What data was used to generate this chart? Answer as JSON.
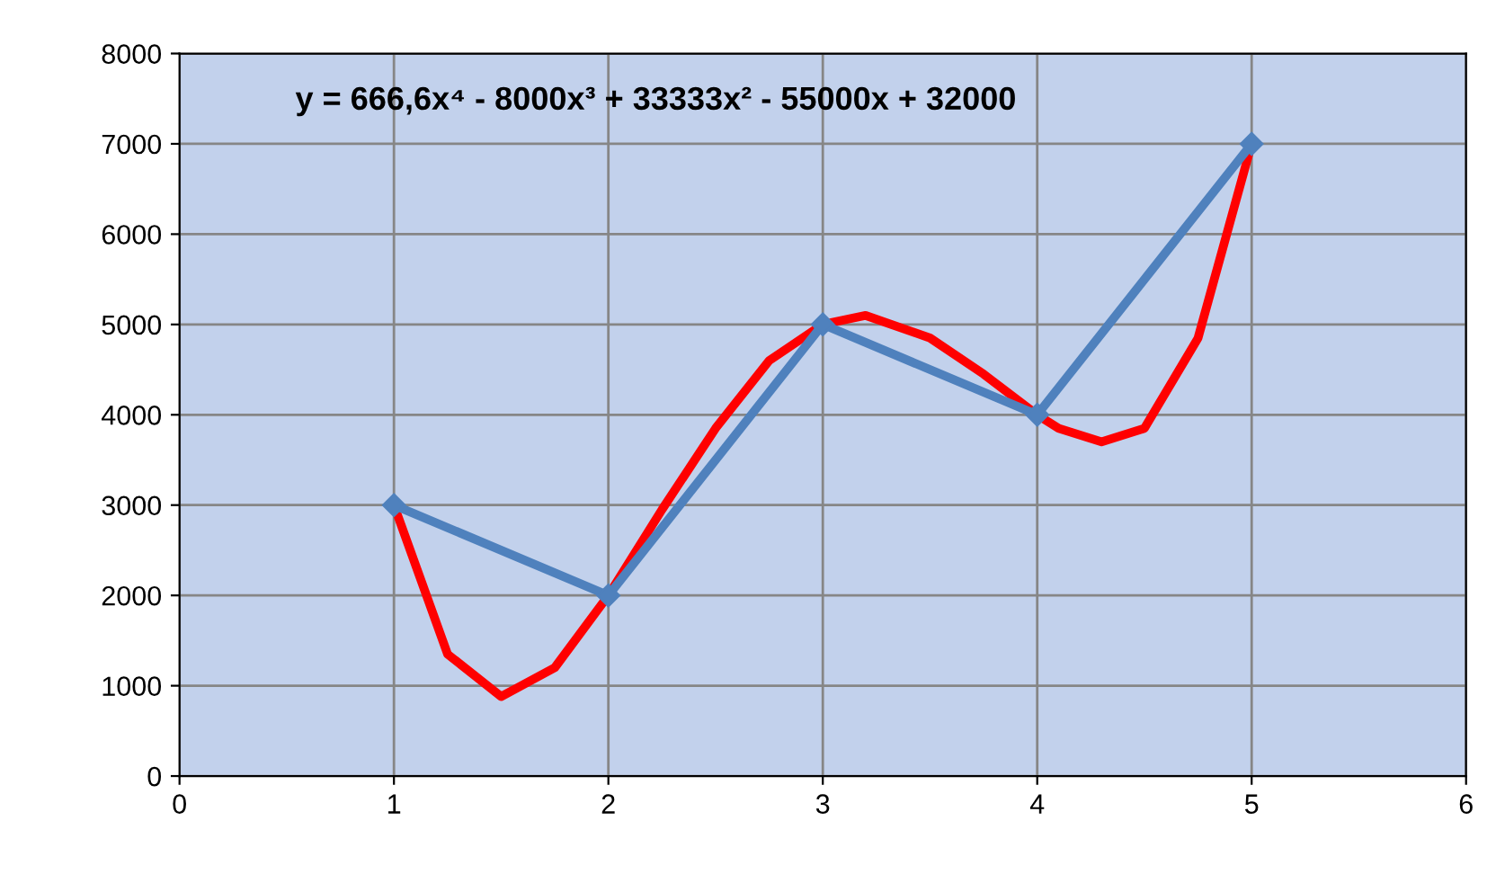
{
  "chart_data": {
    "type": "line",
    "xlim": [
      0,
      6
    ],
    "xticks": [
      0,
      1,
      2,
      3,
      4,
      5,
      6
    ],
    "ylim": [
      0,
      8000
    ],
    "yticks": [
      0,
      1000,
      2000,
      3000,
      4000,
      5000,
      6000,
      7000,
      8000
    ],
    "grid": true,
    "legend": false,
    "annotations": [
      "y = 666,6x⁴ - 8000x³ + 33333x² - 55000x + 32000"
    ],
    "series": [
      {
        "color": "#4f81bd",
        "marker": "diamond",
        "x": [
          1,
          2,
          3,
          4,
          5
        ],
        "values": [
          3000,
          2000,
          5000,
          4000,
          7000
        ]
      },
      {
        "color": "#ff0000",
        "marker": "none",
        "x": [
          1,
          1.25,
          1.5,
          1.75,
          2,
          2.25,
          2.5,
          2.75,
          3,
          3.2,
          3.5,
          3.75,
          4,
          4.1,
          4.3,
          4.5,
          4.75,
          5
        ],
        "values": [
          3000,
          1350,
          880,
          1200,
          2000,
          2950,
          3850,
          4600,
          5000,
          5100,
          4850,
          4450,
          4000,
          3850,
          3700,
          3850,
          4850,
          7000
        ]
      }
    ]
  }
}
